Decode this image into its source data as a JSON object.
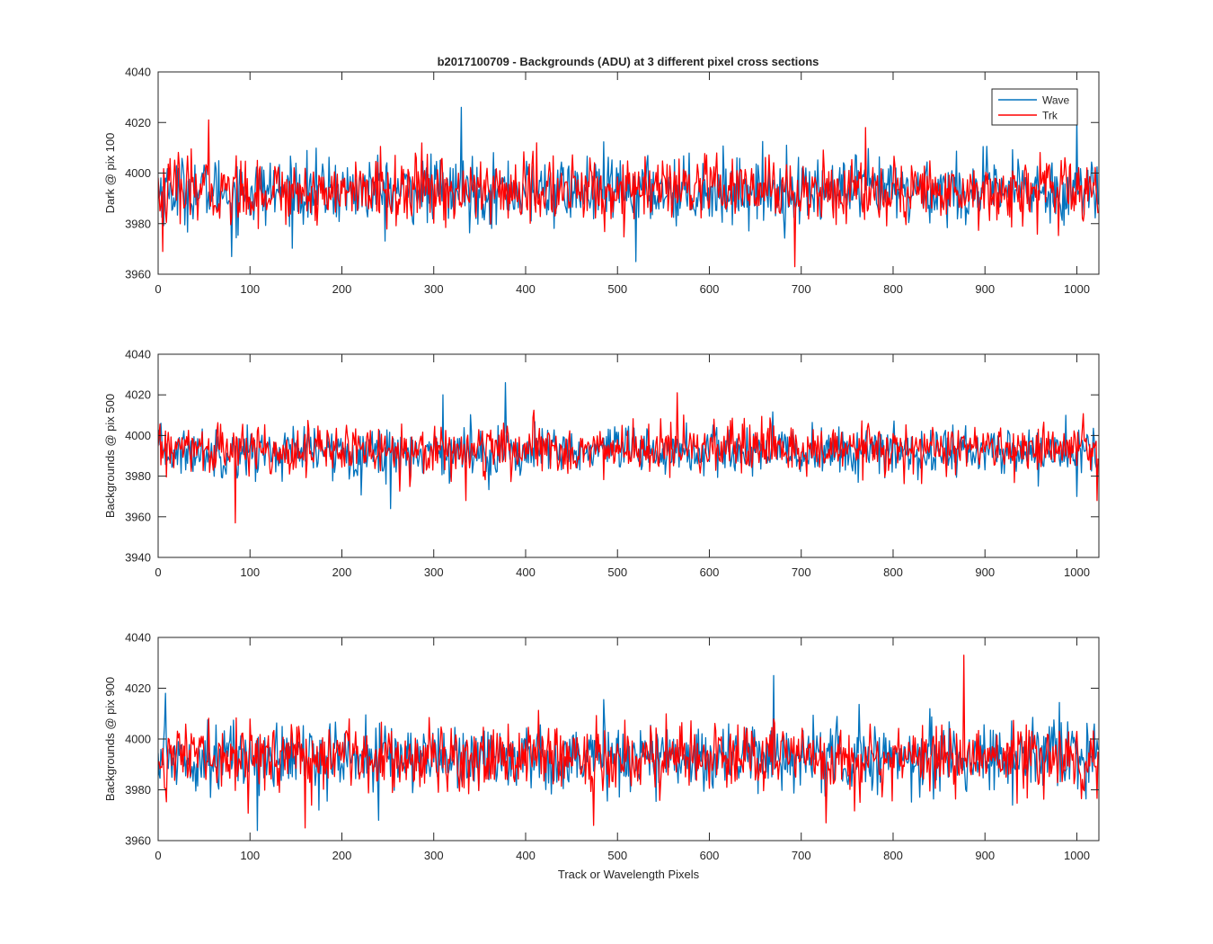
{
  "figure": {
    "title": "b2017100709 - Backgrounds (ADU) at 3 different pixel cross sections"
  },
  "colors": {
    "wave": "#0072BD",
    "trk": "#FF0000",
    "axis": "#262626",
    "background": "#ffffff"
  },
  "chart_data": [
    {
      "type": "line",
      "title": "b2017100709 - Backgrounds (ADU) at 3 different pixel cross sections",
      "xlabel": "",
      "ylabel": "Dark @ pix 100",
      "xlim": [
        0,
        1024
      ],
      "ylim": [
        3960,
        4040
      ],
      "xticks": [
        0,
        100,
        200,
        300,
        400,
        500,
        600,
        700,
        800,
        900,
        1000
      ],
      "yticks": [
        3960,
        3980,
        4000,
        4020,
        4040
      ],
      "grid": false,
      "legend": {
        "placement": "top-right",
        "entries": [
          "Wave",
          "Trk"
        ]
      },
      "series": [
        {
          "name": "Wave",
          "mean": 3993,
          "spread": 6.5,
          "min": 3964,
          "max": 4026,
          "n": 1024,
          "peaks": [
            [
              330,
              4026
            ],
            [
              80,
              3967
            ],
            [
              520,
              3965
            ],
            [
              1000,
              4022
            ]
          ]
        },
        {
          "name": "Trk",
          "mean": 3993,
          "spread": 6.5,
          "min": 3963,
          "max": 4021,
          "n": 1024,
          "peaks": [
            [
              55,
              4021
            ],
            [
              693,
              3963
            ],
            [
              5,
              3969
            ],
            [
              770,
              4018
            ]
          ]
        }
      ]
    },
    {
      "type": "line",
      "title": "",
      "xlabel": "",
      "ylabel": "Backgrounds @ pix 500",
      "xlim": [
        0,
        1024
      ],
      "ylim": [
        3940,
        4040
      ],
      "xticks": [
        0,
        100,
        200,
        300,
        400,
        500,
        600,
        700,
        800,
        900,
        1000
      ],
      "yticks": [
        3940,
        3960,
        3980,
        4000,
        4020,
        4040
      ],
      "grid": false,
      "legend": null,
      "series": [
        {
          "name": "Wave",
          "mean": 3992,
          "spread": 6,
          "min": 3964,
          "max": 4026,
          "n": 1024,
          "peaks": [
            [
              378,
              4026
            ],
            [
              310,
              4020
            ],
            [
              253,
              3964
            ],
            [
              1000,
              3970
            ]
          ]
        },
        {
          "name": "Trk",
          "mean": 3993,
          "spread": 6,
          "min": 3957,
          "max": 4021,
          "n": 1024,
          "peaks": [
            [
              84,
              3957
            ],
            [
              565,
              4021
            ],
            [
              335,
              3968
            ],
            [
              1022,
              3968
            ]
          ]
        }
      ]
    },
    {
      "type": "line",
      "title": "",
      "xlabel": "Track or Wavelength Pixels",
      "ylabel": "Backgrounds @ pix 900",
      "xlim": [
        0,
        1024
      ],
      "ylim": [
        3960,
        4040
      ],
      "xticks": [
        0,
        100,
        200,
        300,
        400,
        500,
        600,
        700,
        800,
        900,
        1000
      ],
      "yticks": [
        3960,
        3980,
        4000,
        4020,
        4040
      ],
      "grid": false,
      "legend": null,
      "series": [
        {
          "name": "Wave",
          "mean": 3993,
          "spread": 6.5,
          "min": 3964,
          "max": 4025,
          "n": 1024,
          "peaks": [
            [
              670,
              4025
            ],
            [
              108,
              3964
            ],
            [
              8,
              4018
            ],
            [
              240,
              3968
            ]
          ]
        },
        {
          "name": "Trk",
          "mean": 3993,
          "spread": 6.5,
          "min": 3965,
          "max": 4033,
          "n": 1024,
          "peaks": [
            [
              877,
              4033
            ],
            [
              160,
              3965
            ],
            [
              474,
              3966
            ],
            [
              727,
              3967
            ]
          ]
        }
      ]
    }
  ]
}
